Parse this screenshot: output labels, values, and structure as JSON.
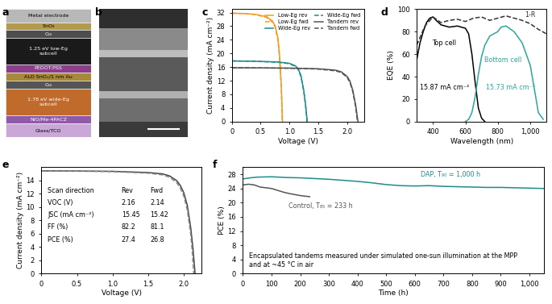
{
  "panel_a": {
    "panel_label": "a",
    "layers": [
      "Metal electrode",
      "SnO₂",
      "C₆₀",
      "1.25 eV low-Eg\nsubcell",
      "PEDOT:PSS",
      "ALD SnOₓ/1 nm Au",
      "C₆₀",
      "1.78 eV wide-Eg\nsubcell",
      "NiO/Me-4PACZ",
      "Glass/TCO"
    ]
  },
  "panel_b": {
    "panel_label": "b"
  },
  "chart_data": [
    {
      "type": "line",
      "panel_label": "c",
      "x_label": "Voltage (V)",
      "y_label": "Current density (mA cm⁻²)",
      "xlim": [
        0,
        2.3
      ],
      "xticks": [
        0,
        0.5,
        {
          "value": 1,
          "label": "1.0"
        },
        1.5,
        {
          "value": 2,
          "label": "2.0"
        }
      ],
      "ylim": [
        0,
        33
      ],
      "yticks": [
        0,
        4,
        8,
        12,
        16,
        20,
        24,
        28,
        32
      ],
      "legend": "upper right",
      "series": [
        {
          "name": "Low-Eg rev",
          "color": "#f39c1f",
          "line_style": "solid",
          "x": [
            0,
            0.2,
            0.4,
            0.6,
            0.7,
            0.75,
            0.8,
            0.83,
            0.86,
            0.88
          ],
          "values": [
            31.8,
            31.7,
            31.5,
            30.8,
            29.6,
            28.2,
            24.5,
            19.0,
            10.0,
            0
          ]
        },
        {
          "name": "Low-Eg fwd",
          "color": "#f39c1f",
          "line_style": "dashed",
          "x": [
            0,
            0.2,
            0.4,
            0.6,
            0.7,
            0.75,
            0.8,
            0.83,
            0.86,
            0.875
          ],
          "values": [
            31.8,
            31.7,
            31.4,
            30.6,
            29.3,
            27.8,
            24.0,
            18.5,
            9.5,
            0
          ]
        },
        {
          "name": "Wide-Eg rev",
          "color": "#1f8c8c",
          "line_style": "solid",
          "x": [
            0,
            0.4,
            0.8,
            1.0,
            1.1,
            1.15,
            1.2,
            1.25,
            1.28,
            1.31
          ],
          "values": [
            17.8,
            17.7,
            17.5,
            17.1,
            16.4,
            15.6,
            13.5,
            9.0,
            5.0,
            0
          ]
        },
        {
          "name": "Wide-Eg fwd",
          "color": "#1f8c8c",
          "line_style": "dashed",
          "x": [
            0,
            0.4,
            0.8,
            1.0,
            1.1,
            1.15,
            1.2,
            1.25,
            1.28,
            1.305
          ],
          "values": [
            17.8,
            17.7,
            17.4,
            17.0,
            16.2,
            15.3,
            13.2,
            8.7,
            4.8,
            0
          ]
        },
        {
          "name": "Tandem rev",
          "color": "#555555",
          "line_style": "solid",
          "x": [
            0,
            0.5,
            1.0,
            1.5,
            1.8,
            1.9,
            2.0,
            2.05,
            2.1,
            2.15,
            2.19
          ],
          "values": [
            15.8,
            15.75,
            15.7,
            15.5,
            15.1,
            14.6,
            13.3,
            11.9,
            9.2,
            4.8,
            0
          ]
        },
        {
          "name": "Tandem fwd",
          "color": "#555555",
          "line_style": "dashed",
          "x": [
            0,
            0.5,
            1.0,
            1.5,
            1.8,
            1.9,
            2.0,
            2.05,
            2.1,
            2.15,
            2.18
          ],
          "values": [
            15.8,
            15.75,
            15.65,
            15.4,
            14.9,
            14.4,
            13.0,
            11.5,
            8.8,
            4.2,
            0
          ]
        }
      ]
    },
    {
      "type": "line",
      "panel_label": "d",
      "x_label": "Wavelength (nm)",
      "y_label": "EQE (%)",
      "xlim": [
        300,
        1100
      ],
      "xticks": [
        400,
        600,
        800,
        {
          "value": 1000,
          "label": "1,000"
        }
      ],
      "ylim": [
        0,
        100
      ],
      "yticks": [
        0,
        20,
        40,
        60,
        80,
        100
      ],
      "annotations": [
        "15.87 mA cm⁻²",
        "15.73 mA cm⁻²"
      ],
      "series": [
        {
          "name": "Top cell",
          "color": "#000000",
          "line_style": "solid",
          "x": [
            300,
            320,
            340,
            360,
            380,
            400,
            420,
            450,
            500,
            550,
            600,
            620,
            640,
            660,
            680,
            700,
            720
          ],
          "values": [
            55,
            70,
            80,
            88,
            92,
            93,
            90,
            86,
            84,
            85,
            83,
            78,
            60,
            35,
            12,
            3,
            0
          ]
        },
        {
          "name": "Bottom cell",
          "color": "#2aa6a0",
          "line_style": "solid",
          "x": [
            600,
            620,
            640,
            660,
            680,
            700,
            720,
            750,
            800,
            820,
            850,
            900,
            950,
            1000,
            1030,
            1050,
            1080
          ],
          "values": [
            0,
            2,
            8,
            22,
            42,
            58,
            68,
            76,
            80,
            84,
            85,
            80,
            70,
            50,
            25,
            8,
            2
          ]
        },
        {
          "name": "1-R",
          "color": "#333333",
          "line_style": "dashed",
          "x": [
            300,
            350,
            400,
            450,
            500,
            550,
            600,
            650,
            700,
            750,
            800,
            850,
            900,
            950,
            1000,
            1050,
            1100
          ],
          "values": [
            68,
            85,
            93,
            88,
            90,
            91,
            89,
            92,
            93,
            90,
            92,
            94,
            92,
            90,
            87,
            82,
            78
          ]
        }
      ]
    },
    {
      "type": "line",
      "panel_label": "e",
      "x_label": "Voltage (V)",
      "y_label": "Current density (mA cm⁻²)",
      "xlim": [
        0,
        2.25
      ],
      "xticks": [
        0,
        0.5,
        {
          "value": 1,
          "label": "1.0"
        },
        1.5,
        {
          "value": 2,
          "label": "2.0"
        }
      ],
      "ylim": [
        0,
        16
      ],
      "yticks": [
        0,
        2,
        4,
        6,
        8,
        10,
        12,
        14
      ],
      "table": {
        "header": [
          "Scan direction",
          "Rev",
          "Fwd"
        ],
        "rows": [
          [
            "VOC (V)",
            "2.16",
            "2.14"
          ],
          [
            "JSC (mA cm⁻²)",
            "15.45",
            "15.42"
          ],
          [
            "FF (%)",
            "82.2",
            "81.1"
          ],
          [
            "PCE (%)",
            "27.4",
            "26.8"
          ]
        ]
      },
      "series": [
        {
          "color": "#444444",
          "line_style": "solid",
          "x": [
            0,
            0.5,
            1.0,
            1.5,
            1.7,
            1.8,
            1.9,
            1.95,
            2.0,
            2.05,
            2.1,
            2.13,
            2.16
          ],
          "values": [
            15.45,
            15.43,
            15.38,
            15.2,
            15.0,
            14.7,
            14.0,
            13.3,
            12.2,
            10.3,
            6.8,
            3.8,
            0
          ]
        },
        {
          "color": "#888888",
          "line_style": "dashed",
          "x": [
            0,
            0.5,
            1.0,
            1.5,
            1.7,
            1.8,
            1.9,
            1.95,
            2.0,
            2.05,
            2.1,
            2.12,
            2.14
          ],
          "values": [
            15.42,
            15.4,
            15.33,
            15.1,
            14.85,
            14.5,
            13.7,
            12.9,
            11.7,
            9.6,
            5.8,
            3.3,
            0
          ]
        }
      ]
    },
    {
      "type": "line",
      "panel_label": "f",
      "x_label": "Time (h)",
      "y_label": "PCE (%)",
      "xlim": [
        0,
        1050
      ],
      "xticks": [
        0,
        100,
        200,
        300,
        400,
        500,
        600,
        700,
        800,
        900,
        {
          "value": 1000,
          "label": "1,000"
        }
      ],
      "ylim": [
        0,
        30
      ],
      "yticks": [
        0,
        4,
        8,
        12,
        16,
        20,
        24,
        28
      ],
      "annotations": [
        "DAP, T₉₀ = 1,000 h",
        "Control, T₈₅ = 233 h",
        "Encapsulated tandems measured under simulated one-sun illumination at the MPP\nand at ~45 °C in air"
      ],
      "series": [
        {
          "name": "DAP",
          "color": "#1f8c8c",
          "line_style": "solid",
          "x": [
            0,
            25,
            50,
            100,
            150,
            200,
            250,
            300,
            350,
            400,
            450,
            500,
            550,
            600,
            650,
            700,
            750,
            800,
            850,
            900,
            950,
            1000,
            1050
          ],
          "values": [
            26.7,
            27.0,
            27.2,
            27.3,
            27.1,
            27.0,
            26.8,
            26.6,
            26.3,
            26.0,
            25.6,
            25.1,
            24.8,
            24.7,
            24.8,
            24.6,
            24.5,
            24.4,
            24.3,
            24.3,
            24.2,
            24.1,
            24.0
          ]
        },
        {
          "name": "Control",
          "color": "#555555",
          "line_style": "solid",
          "x": [
            0,
            20,
            40,
            60,
            80,
            100,
            120,
            140,
            160,
            180,
            200,
            220,
            233
          ],
          "values": [
            25.0,
            25.2,
            25.0,
            24.4,
            24.2,
            24.0,
            23.5,
            23.0,
            22.6,
            22.3,
            22.0,
            21.8,
            21.7
          ]
        }
      ]
    }
  ]
}
